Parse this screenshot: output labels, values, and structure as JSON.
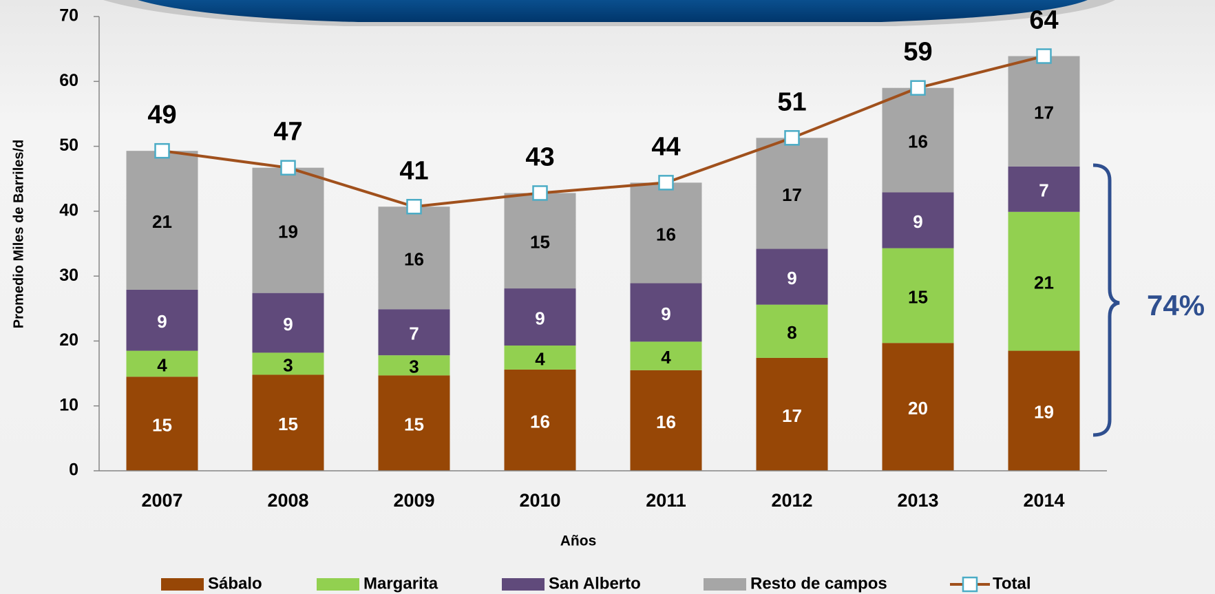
{
  "chart_data": {
    "type": "stacked-bar-line",
    "categories": [
      "2007",
      "2008",
      "2009",
      "2010",
      "2011",
      "2012",
      "2013",
      "2014"
    ],
    "series": [
      {
        "name": "Sábalo",
        "color": "#974706",
        "label_color": "#ffffff",
        "values": [
          14.5,
          14.8,
          14.7,
          15.6,
          15.5,
          17.4,
          19.7,
          18.5
        ],
        "value_labels": [
          "15",
          "15",
          "15",
          "16",
          "16",
          "17",
          "20",
          "19"
        ]
      },
      {
        "name": "Margarita",
        "color": "#92d050",
        "label_color": "#000000",
        "values": [
          4.0,
          3.4,
          3.1,
          3.7,
          4.4,
          8.2,
          14.6,
          21.4
        ],
        "value_labels": [
          "4",
          "3",
          "3",
          "4",
          "4",
          "8",
          "15",
          "21"
        ]
      },
      {
        "name": "San Alberto",
        "color": "#604a7b",
        "label_color": "#ffffff",
        "values": [
          9.4,
          9.2,
          7.1,
          8.8,
          9.0,
          8.6,
          8.6,
          7.0
        ],
        "value_labels": [
          "9",
          "9",
          "7",
          "9",
          "9",
          "9",
          "9",
          "7"
        ]
      },
      {
        "name": "Resto de campos",
        "color": "#a6a6a6",
        "label_color": "#000000",
        "values": [
          21.4,
          19.3,
          15.8,
          14.7,
          15.5,
          17.1,
          16.1,
          17.0
        ],
        "value_labels": [
          "21",
          "19",
          "16",
          "15",
          "16",
          "17",
          "16",
          "17"
        ]
      }
    ],
    "line": {
      "name": "Total",
      "color": "#a0501c",
      "marker_color": "#4bacc6",
      "values": [
        49.3,
        46.7,
        40.7,
        42.8,
        44.4,
        51.3,
        59.0,
        63.9
      ],
      "value_labels": [
        "49",
        "47",
        "41",
        "43",
        "44",
        "51",
        "59",
        "64"
      ]
    },
    "ylim": [
      0,
      70
    ],
    "yticks": [
      0,
      10,
      20,
      30,
      40,
      50,
      60,
      70
    ],
    "ylabel": "Promedio Miles de Barriles/d",
    "xlabel": "Años",
    "annotation": "74%",
    "grid": false,
    "legend": "bottom"
  }
}
